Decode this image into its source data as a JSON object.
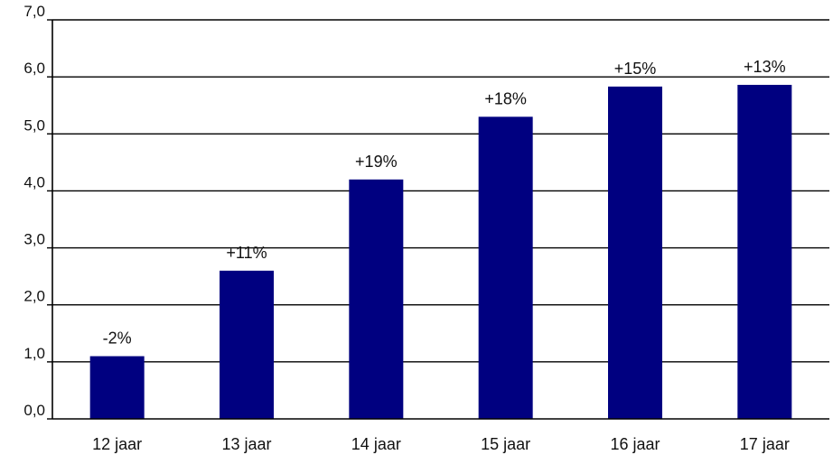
{
  "chart_data": {
    "type": "bar",
    "title": "",
    "xlabel": "",
    "ylabel": "",
    "categories": [
      "12 jaar",
      "13 jaar",
      "14 jaar",
      "15 jaar",
      "16 jaar",
      "17 jaar"
    ],
    "values": [
      1.1,
      2.6,
      4.2,
      5.3,
      5.83,
      5.86
    ],
    "data_labels": [
      "-2%",
      "+11%",
      "+19%",
      "+18%",
      "+15%",
      "+13%"
    ],
    "ylim": [
      0,
      7
    ],
    "yticks": [
      0,
      1,
      2,
      3,
      4,
      5,
      6,
      7
    ],
    "ytick_labels": [
      "0,0",
      "1,0",
      "2,0",
      "3,0",
      "4,0",
      "5,0",
      "6,0",
      "7,0"
    ],
    "grid": true,
    "legend": "none",
    "colors": {
      "bar": "#000080",
      "grid": "#000000"
    }
  }
}
